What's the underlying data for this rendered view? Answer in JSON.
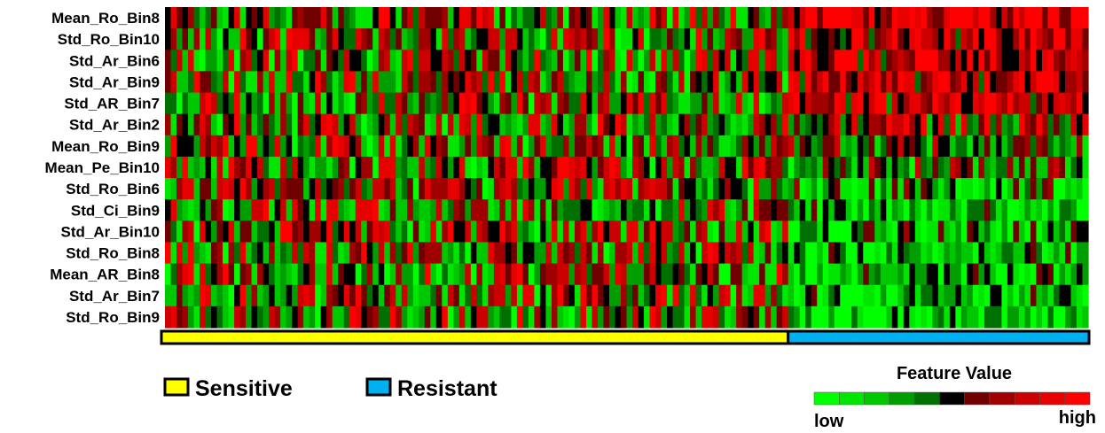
{
  "chart_data": {
    "type": "heatmap",
    "rows": [
      "Mean_Ro_Bin8",
      "Std_Ro_Bin10",
      "Std_Ar_Bin6",
      "Std_Ar_Bin9",
      "Std_AR_Bin7",
      "Std_Ar_Bin2",
      "Mean_Ro_Bin9",
      "Mean_Pe_Bin10",
      "Std_Ro_Bin6",
      "Std_Ci_Bin9",
      "Std_Ar_Bin10",
      "Std_Ro_Bin8",
      "Mean_AR_Bin8",
      "Std_Ar_Bin7",
      "Std_Ro_Bin9"
    ],
    "groups": [
      {
        "name": "Sensitive",
        "color": "#ffff00",
        "n_samples": 108
      },
      {
        "name": "Resistant",
        "color": "#00b0f0",
        "n_samples": 52
      }
    ],
    "n_samples": 160,
    "value_range": [
      0,
      1
    ],
    "generation_note": "per-cell values approximated procedurally; overall pattern: sensitive group mixed, resistant group high (red) for top rows and low (green) for bottom rows",
    "colorscale": {
      "title": "Feature Value",
      "low_label": "low",
      "high_label": "high",
      "colors": [
        "#00ff00",
        "#00e600",
        "#00c800",
        "#009e00",
        "#007000",
        "#000000",
        "#700000",
        "#a00000",
        "#cc0000",
        "#e60000",
        "#ff0000"
      ]
    },
    "row_trend": [
      0.85,
      0.8,
      0.78,
      0.75,
      0.7,
      0.6,
      0.45,
      0.4,
      0.3,
      0.25,
      0.28,
      0.25,
      0.22,
      0.2,
      0.15
    ]
  }
}
